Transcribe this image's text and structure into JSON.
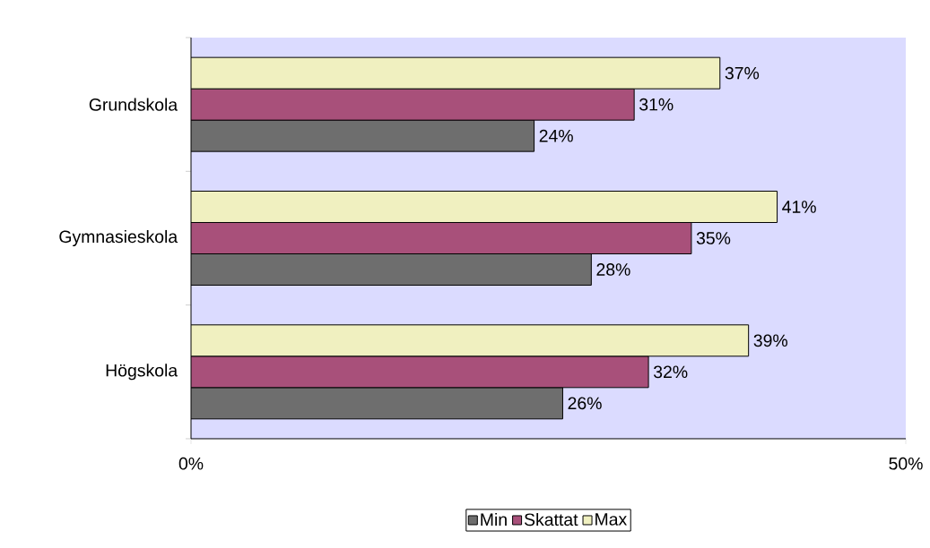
{
  "chart_data": {
    "type": "bar",
    "orientation": "horizontal",
    "categories": [
      "Grundskola",
      "Gymnasieskola",
      "Högskola"
    ],
    "series": [
      {
        "name": "Min",
        "color": "#6e6e6e",
        "values": [
          24,
          28,
          26
        ],
        "value_labels": [
          "24%",
          "28%",
          "26%"
        ]
      },
      {
        "name": "Skattat",
        "color": "#a8507a",
        "values": [
          31,
          35,
          32
        ],
        "value_labels": [
          "31%",
          "35%",
          "32%"
        ]
      },
      {
        "name": "Max",
        "color": "#f0f0c0",
        "values": [
          37,
          41,
          39
        ],
        "value_labels": [
          "37%",
          "41%",
          "39%"
        ]
      }
    ],
    "xlim": [
      0,
      50
    ],
    "xticks": [
      {
        "value": 0,
        "label": "0%"
      },
      {
        "value": 50,
        "label": "50%"
      }
    ],
    "grid": false,
    "legend": "bottom"
  }
}
